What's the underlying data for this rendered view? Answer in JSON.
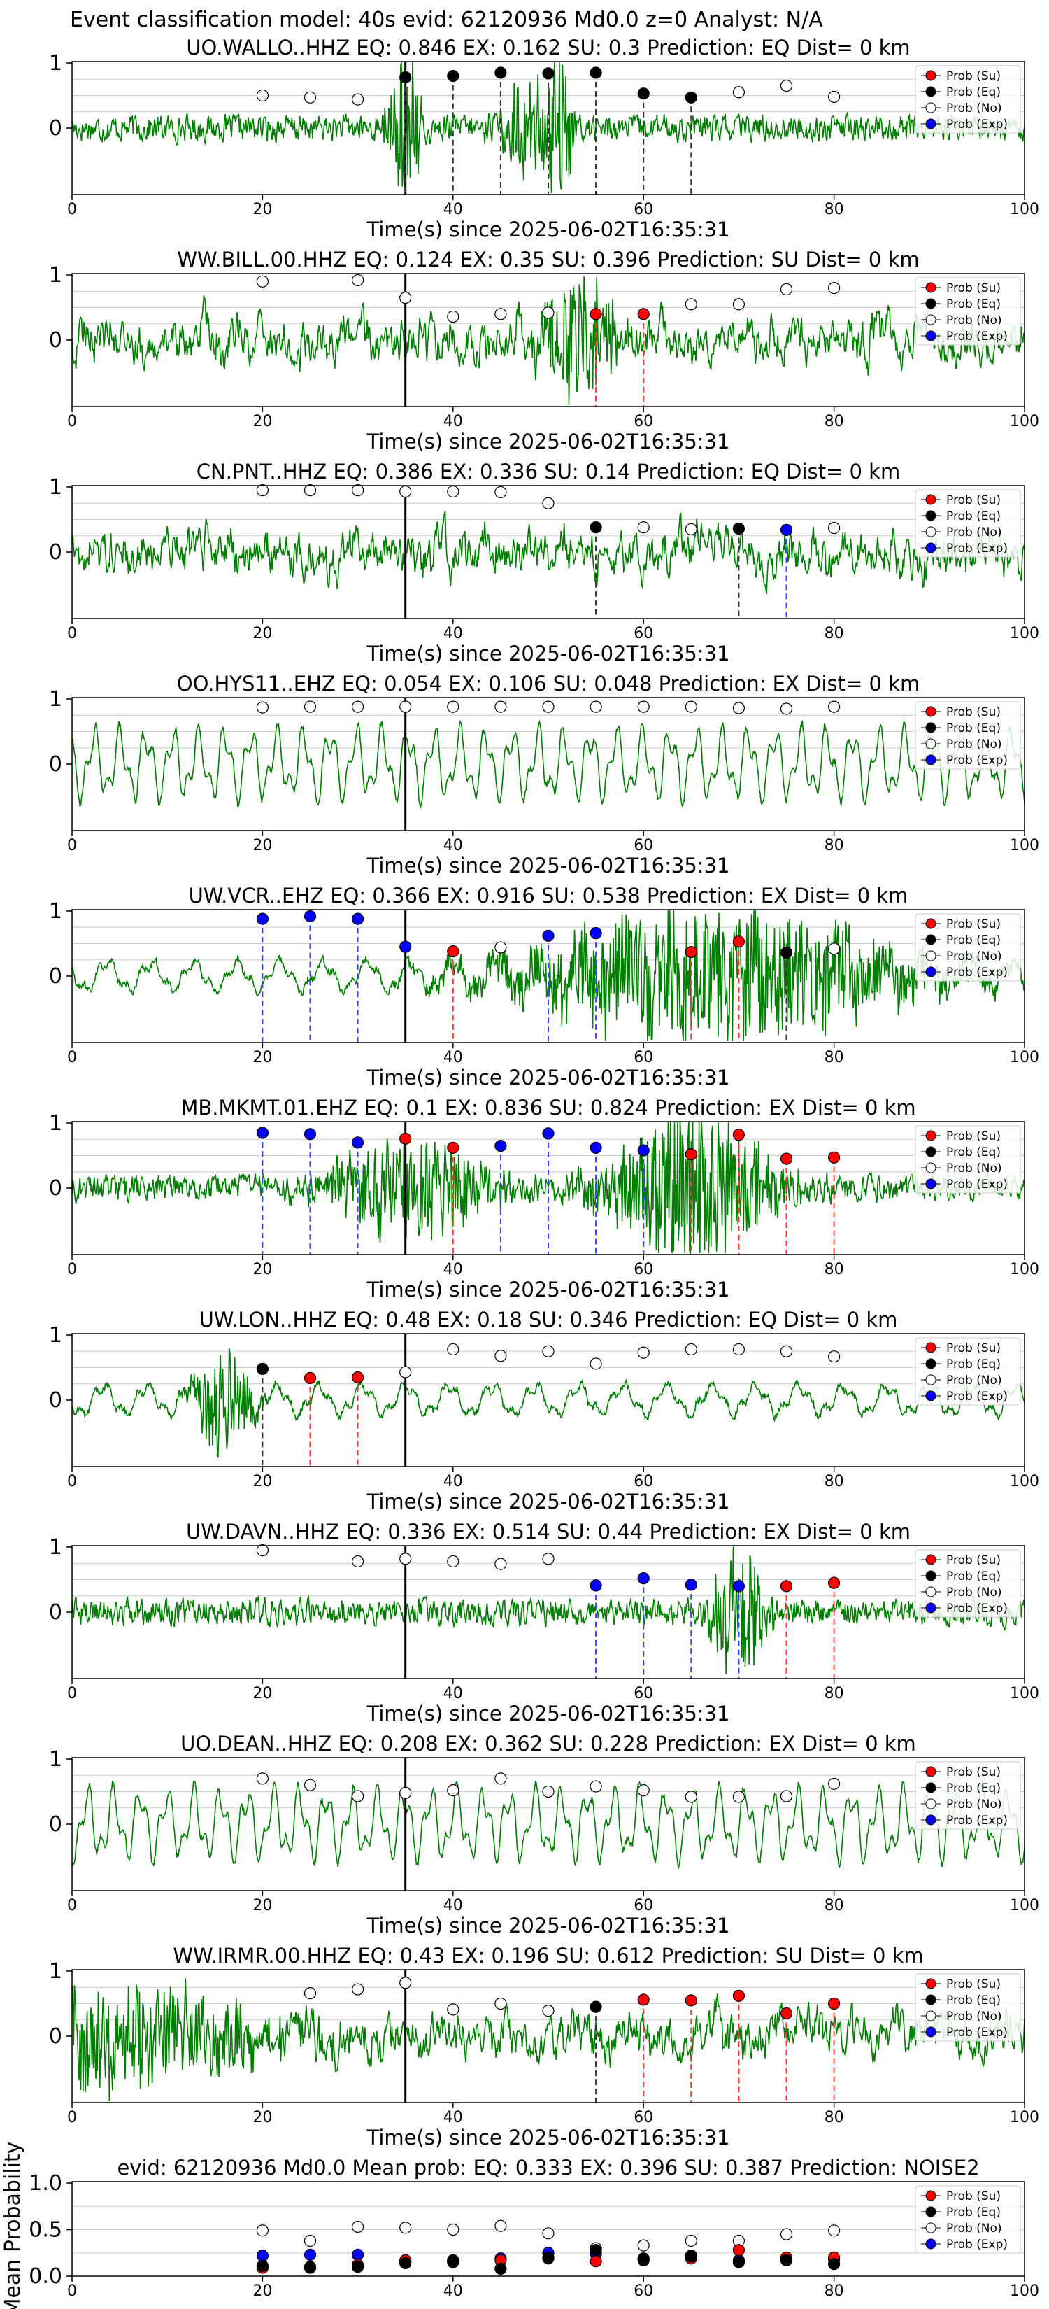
{
  "figure": {
    "header": "Event classification model: 40s evid: 62120936 Md0.0 z=0 Analyst: N/A",
    "legend_labels": [
      "Prob (Su)",
      "Prob (Eq)",
      "Prob (No)",
      "Prob (Exp)"
    ],
    "colors": {
      "su": "#ff0000",
      "eq": "#000000",
      "no": "#ffffff",
      "exp": "#0000ff",
      "waveform": "#008000",
      "gridline": "#cccccc"
    },
    "x_label": "Time(s) since 2025-06-02T16:35:31",
    "x_ticks": [
      0,
      20,
      40,
      60,
      80,
      100
    ],
    "y_ticks": [
      0,
      1
    ],
    "pick_time": 35,
    "time_points": [
      20,
      25,
      30,
      35,
      40,
      45,
      50,
      55,
      60,
      65,
      70,
      75,
      80
    ]
  },
  "chart_data": [
    {
      "type": "line",
      "title": "UO.WALLO..HHZ   EQ: 0.846  EX: 0.162  SU: 0.3   Prediction: EQ    Dist= 0 km",
      "waveform": {
        "style": "noisy",
        "events": [
          [
            35,
            2.2,
            1.2
          ],
          [
            48,
            1.6,
            2.0
          ],
          [
            51,
            3.0,
            1.0
          ]
        ]
      },
      "markers": [
        {
          "x": 20,
          "cls": "no",
          "p": 0.5
        },
        {
          "x": 25,
          "cls": "no",
          "p": 0.47
        },
        {
          "x": 30,
          "cls": "no",
          "p": 0.44
        },
        {
          "x": 35,
          "cls": "eq",
          "p": 0.78,
          "line": true
        },
        {
          "x": 40,
          "cls": "eq",
          "p": 0.8,
          "line": true
        },
        {
          "x": 45,
          "cls": "eq",
          "p": 0.85,
          "line": true
        },
        {
          "x": 50,
          "cls": "eq",
          "p": 0.84,
          "line": true
        },
        {
          "x": 55,
          "cls": "eq",
          "p": 0.85,
          "line": true
        },
        {
          "x": 60,
          "cls": "eq",
          "p": 0.53,
          "line": true
        },
        {
          "x": 65,
          "cls": "eq",
          "p": 0.47,
          "line": true
        },
        {
          "x": 70,
          "cls": "no",
          "p": 0.55
        },
        {
          "x": 75,
          "cls": "no",
          "p": 0.65
        },
        {
          "x": 80,
          "cls": "no",
          "p": 0.48
        }
      ]
    },
    {
      "type": "line",
      "title": "WW.BILL.00.HHZ   EQ: 0.124  EX: 0.35  SU: 0.396   Prediction: SU    Dist= 0 km",
      "waveform": {
        "style": "dense",
        "events": [
          [
            53,
            2.0,
            3.0
          ]
        ]
      },
      "markers": [
        {
          "x": 20,
          "cls": "no",
          "p": 0.9
        },
        {
          "x": 30,
          "cls": "no",
          "p": 0.92
        },
        {
          "x": 35,
          "cls": "no",
          "p": 0.65
        },
        {
          "x": 40,
          "cls": "no",
          "p": 0.36
        },
        {
          "x": 45,
          "cls": "no",
          "p": 0.4
        },
        {
          "x": 50,
          "cls": "no",
          "p": 0.42
        },
        {
          "x": 55,
          "cls": "su",
          "p": 0.4,
          "line": true
        },
        {
          "x": 60,
          "cls": "su",
          "p": 0.4,
          "line": true
        },
        {
          "x": 65,
          "cls": "no",
          "p": 0.55
        },
        {
          "x": 70,
          "cls": "no",
          "p": 0.55
        },
        {
          "x": 75,
          "cls": "no",
          "p": 0.78
        },
        {
          "x": 80,
          "cls": "no",
          "p": 0.8
        }
      ]
    },
    {
      "type": "line",
      "title": "CN.PNT..HHZ   EQ: 0.386  EX: 0.336  SU: 0.14   Prediction: EQ    Dist= 0 km",
      "waveform": {
        "style": "dense",
        "events": []
      },
      "markers": [
        {
          "x": 20,
          "cls": "no",
          "p": 0.95
        },
        {
          "x": 25,
          "cls": "no",
          "p": 0.95
        },
        {
          "x": 30,
          "cls": "no",
          "p": 0.95
        },
        {
          "x": 35,
          "cls": "no",
          "p": 0.93
        },
        {
          "x": 40,
          "cls": "no",
          "p": 0.93
        },
        {
          "x": 45,
          "cls": "no",
          "p": 0.92
        },
        {
          "x": 50,
          "cls": "no",
          "p": 0.75
        },
        {
          "x": 55,
          "cls": "eq",
          "p": 0.38,
          "line": true
        },
        {
          "x": 60,
          "cls": "no",
          "p": 0.38
        },
        {
          "x": 65,
          "cls": "no",
          "p": 0.35
        },
        {
          "x": 70,
          "cls": "eq",
          "p": 0.36,
          "line": true
        },
        {
          "x": 75,
          "cls": "exp",
          "p": 0.34,
          "line": true
        },
        {
          "x": 80,
          "cls": "no",
          "p": 0.37
        }
      ]
    },
    {
      "type": "line",
      "title": "OO.HYS11..EHZ   EQ: 0.054  EX: 0.106  SU: 0.048   Prediction: EX    Dist= 0 km",
      "waveform": {
        "style": "wavy",
        "events": []
      },
      "markers": [
        {
          "x": 20,
          "cls": "no",
          "p": 0.87
        },
        {
          "x": 25,
          "cls": "no",
          "p": 0.88
        },
        {
          "x": 30,
          "cls": "no",
          "p": 0.88
        },
        {
          "x": 35,
          "cls": "no",
          "p": 0.88
        },
        {
          "x": 40,
          "cls": "no",
          "p": 0.88
        },
        {
          "x": 45,
          "cls": "no",
          "p": 0.88
        },
        {
          "x": 50,
          "cls": "no",
          "p": 0.88
        },
        {
          "x": 55,
          "cls": "no",
          "p": 0.88
        },
        {
          "x": 60,
          "cls": "no",
          "p": 0.88
        },
        {
          "x": 65,
          "cls": "no",
          "p": 0.88
        },
        {
          "x": 70,
          "cls": "no",
          "p": 0.86
        },
        {
          "x": 75,
          "cls": "no",
          "p": 0.85
        },
        {
          "x": 80,
          "cls": "no",
          "p": 0.88
        }
      ]
    },
    {
      "type": "line",
      "title": "UW.VCR..EHZ   EQ: 0.366  EX: 0.916  SU: 0.538   Prediction: EX    Dist= 0 km",
      "waveform": {
        "style": "wavy_small",
        "events": [
          [
            68,
            2.2,
            14.0
          ]
        ]
      },
      "markers": [
        {
          "x": 20,
          "cls": "exp",
          "p": 0.88,
          "line": true
        },
        {
          "x": 25,
          "cls": "exp",
          "p": 0.92,
          "line": true
        },
        {
          "x": 30,
          "cls": "exp",
          "p": 0.88,
          "line": true
        },
        {
          "x": 35,
          "cls": "exp",
          "p": 0.45
        },
        {
          "x": 40,
          "cls": "su",
          "p": 0.38,
          "line": true
        },
        {
          "x": 45,
          "cls": "no",
          "p": 0.44
        },
        {
          "x": 50,
          "cls": "exp",
          "p": 0.62,
          "line": true
        },
        {
          "x": 55,
          "cls": "exp",
          "p": 0.66,
          "line": true
        },
        {
          "x": 65,
          "cls": "su",
          "p": 0.37,
          "line": true
        },
        {
          "x": 70,
          "cls": "su",
          "p": 0.53,
          "line": true
        },
        {
          "x": 75,
          "cls": "eq",
          "p": 0.36,
          "line": true
        },
        {
          "x": 80,
          "cls": "no",
          "p": 0.42
        }
      ]
    },
    {
      "type": "line",
      "title": "MB.MKMT.01.EHZ   EQ: 0.1  EX: 0.836  SU: 0.824   Prediction: EX    Dist= 0 km",
      "waveform": {
        "style": "noisy",
        "events": [
          [
            35,
            1.5,
            6.0
          ],
          [
            65,
            2.4,
            6.0
          ]
        ]
      },
      "markers": [
        {
          "x": 20,
          "cls": "exp",
          "p": 0.85,
          "line": true
        },
        {
          "x": 25,
          "cls": "exp",
          "p": 0.83,
          "line": true
        },
        {
          "x": 30,
          "cls": "exp",
          "p": 0.7,
          "line": true
        },
        {
          "x": 35,
          "cls": "su",
          "p": 0.76
        },
        {
          "x": 40,
          "cls": "su",
          "p": 0.62,
          "line": true
        },
        {
          "x": 45,
          "cls": "exp",
          "p": 0.65,
          "line": true
        },
        {
          "x": 50,
          "cls": "exp",
          "p": 0.84,
          "line": true
        },
        {
          "x": 55,
          "cls": "exp",
          "p": 0.62,
          "line": true
        },
        {
          "x": 60,
          "cls": "exp",
          "p": 0.58,
          "line": true
        },
        {
          "x": 65,
          "cls": "su",
          "p": 0.52,
          "line": true
        },
        {
          "x": 70,
          "cls": "su",
          "p": 0.82,
          "line": true
        },
        {
          "x": 75,
          "cls": "su",
          "p": 0.45,
          "line": true
        },
        {
          "x": 80,
          "cls": "su",
          "p": 0.47,
          "line": true
        }
      ]
    },
    {
      "type": "line",
      "title": "UW.LON..HHZ   EQ: 0.48  EX: 0.18  SU: 0.346   Prediction: EQ    Dist= 0 km",
      "waveform": {
        "style": "wavy_small",
        "events": [
          [
            16,
            1.8,
            2.0
          ]
        ]
      },
      "markers": [
        {
          "x": 20,
          "cls": "eq",
          "p": 0.48,
          "line": true
        },
        {
          "x": 25,
          "cls": "su",
          "p": 0.34,
          "line": true
        },
        {
          "x": 30,
          "cls": "su",
          "p": 0.35,
          "line": true
        },
        {
          "x": 35,
          "cls": "no",
          "p": 0.43
        },
        {
          "x": 40,
          "cls": "no",
          "p": 0.78
        },
        {
          "x": 45,
          "cls": "no",
          "p": 0.68
        },
        {
          "x": 50,
          "cls": "no",
          "p": 0.75
        },
        {
          "x": 55,
          "cls": "no",
          "p": 0.56
        },
        {
          "x": 60,
          "cls": "no",
          "p": 0.73
        },
        {
          "x": 65,
          "cls": "no",
          "p": 0.78
        },
        {
          "x": 70,
          "cls": "no",
          "p": 0.78
        },
        {
          "x": 75,
          "cls": "no",
          "p": 0.75
        },
        {
          "x": 80,
          "cls": "no",
          "p": 0.67
        }
      ]
    },
    {
      "type": "line",
      "title": "UW.DAVN..HHZ   EQ: 0.336  EX: 0.514  SU: 0.44   Prediction: EX    Dist= 0 km",
      "waveform": {
        "style": "noisy",
        "events": [
          [
            70,
            2.2,
            2.0
          ]
        ]
      },
      "markers": [
        {
          "x": 20,
          "cls": "no",
          "p": 0.95
        },
        {
          "x": 30,
          "cls": "no",
          "p": 0.78
        },
        {
          "x": 35,
          "cls": "no",
          "p": 0.82
        },
        {
          "x": 40,
          "cls": "no",
          "p": 0.78
        },
        {
          "x": 45,
          "cls": "no",
          "p": 0.74
        },
        {
          "x": 50,
          "cls": "no",
          "p": 0.82
        },
        {
          "x": 55,
          "cls": "exp",
          "p": 0.41,
          "line": true
        },
        {
          "x": 60,
          "cls": "exp",
          "p": 0.52,
          "line": true
        },
        {
          "x": 65,
          "cls": "exp",
          "p": 0.42,
          "line": true
        },
        {
          "x": 70,
          "cls": "exp",
          "p": 0.4,
          "line": true
        },
        {
          "x": 75,
          "cls": "su",
          "p": 0.4,
          "line": true
        },
        {
          "x": 80,
          "cls": "su",
          "p": 0.45,
          "line": true
        }
      ]
    },
    {
      "type": "line",
      "title": "UO.DEAN..HHZ   EQ: 0.208  EX: 0.362  SU: 0.228   Prediction: EX    Dist= 0 km",
      "waveform": {
        "style": "wavy",
        "events": []
      },
      "markers": [
        {
          "x": 20,
          "cls": "no",
          "p": 0.7
        },
        {
          "x": 25,
          "cls": "no",
          "p": 0.6
        },
        {
          "x": 30,
          "cls": "no",
          "p": 0.43
        },
        {
          "x": 35,
          "cls": "no",
          "p": 0.48
        },
        {
          "x": 40,
          "cls": "no",
          "p": 0.52
        },
        {
          "x": 45,
          "cls": "no",
          "p": 0.7
        },
        {
          "x": 50,
          "cls": "no",
          "p": 0.5
        },
        {
          "x": 55,
          "cls": "no",
          "p": 0.58
        },
        {
          "x": 60,
          "cls": "no",
          "p": 0.52
        },
        {
          "x": 65,
          "cls": "no",
          "p": 0.42
        },
        {
          "x": 70,
          "cls": "no",
          "p": 0.42
        },
        {
          "x": 75,
          "cls": "no",
          "p": 0.43
        },
        {
          "x": 80,
          "cls": "no",
          "p": 0.62
        }
      ]
    },
    {
      "type": "line",
      "title": "WW.IRMR.00.HHZ   EQ: 0.43  EX: 0.196  SU: 0.612   Prediction: SU    Dist= 0 km",
      "waveform": {
        "style": "dense",
        "events": [
          [
            5,
            1.5,
            12.0
          ]
        ]
      },
      "markers": [
        {
          "x": 25,
          "cls": "no",
          "p": 0.66
        },
        {
          "x": 30,
          "cls": "no",
          "p": 0.72
        },
        {
          "x": 35,
          "cls": "no",
          "p": 0.82
        },
        {
          "x": 40,
          "cls": "no",
          "p": 0.41
        },
        {
          "x": 45,
          "cls": "no",
          "p": 0.5
        },
        {
          "x": 50,
          "cls": "no",
          "p": 0.39
        },
        {
          "x": 55,
          "cls": "eq",
          "p": 0.45,
          "line": true
        },
        {
          "x": 60,
          "cls": "su",
          "p": 0.56,
          "line": true
        },
        {
          "x": 65,
          "cls": "su",
          "p": 0.55,
          "line": true
        },
        {
          "x": 70,
          "cls": "su",
          "p": 0.62,
          "line": true
        },
        {
          "x": 75,
          "cls": "su",
          "p": 0.35,
          "line": true
        },
        {
          "x": 80,
          "cls": "su",
          "p": 0.5,
          "line": true
        }
      ]
    },
    {
      "type": "scatter",
      "title": "evid: 62120936  Md0.0   Mean prob:   EQ: 0.333  EX: 0.396  SU: 0.387   Prediction: NOISE2",
      "ylabel": "Mean Probability",
      "ylim": [
        0,
        1
      ],
      "y_ticks": [
        0.0,
        0.5,
        1.0
      ],
      "series": [
        {
          "cls": "no",
          "values": [
            0.49,
            0.38,
            0.53,
            0.52,
            0.5,
            0.54,
            0.46,
            0.3,
            0.33,
            0.38,
            0.38,
            0.45,
            0.49
          ]
        },
        {
          "cls": "exp",
          "values": [
            0.22,
            0.23,
            0.23,
            0.16,
            0.17,
            0.19,
            0.25,
            0.24,
            0.19,
            0.22,
            0.17,
            0.19,
            0.18
          ]
        },
        {
          "cls": "su",
          "values": [
            0.09,
            0.09,
            0.12,
            0.17,
            0.16,
            0.17,
            0.19,
            0.16,
            0.17,
            0.19,
            0.28,
            0.2,
            0.2
          ]
        },
        {
          "cls": "eq",
          "values": [
            0.11,
            0.1,
            0.1,
            0.14,
            0.15,
            0.08,
            0.2,
            0.28,
            0.18,
            0.21,
            0.15,
            0.17,
            0.13
          ]
        }
      ]
    }
  ]
}
